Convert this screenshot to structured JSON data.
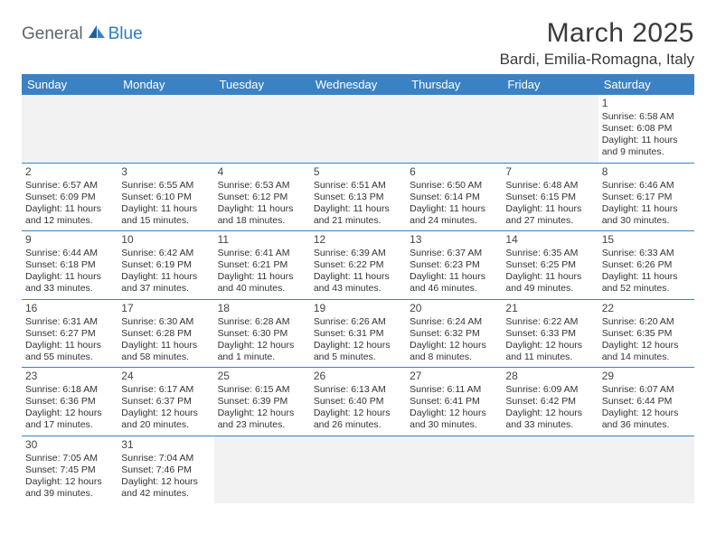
{
  "logo": {
    "part1": "General",
    "part2": "Blue"
  },
  "title": "March 2025",
  "location": "Bardi, Emilia-Romagna, Italy",
  "colors": {
    "header_bg": "#3b82c4",
    "header_text": "#ffffff",
    "cell_border": "#3b82c4",
    "logo_gray": "#5a6670",
    "logo_blue": "#2f7bbf",
    "empty_bg": "#f2f2f2"
  },
  "day_headers": [
    "Sunday",
    "Monday",
    "Tuesday",
    "Wednesday",
    "Thursday",
    "Friday",
    "Saturday"
  ],
  "weeks": [
    [
      null,
      null,
      null,
      null,
      null,
      null,
      {
        "n": "1",
        "sr": "Sunrise: 6:58 AM",
        "ss": "Sunset: 6:08 PM",
        "d1": "Daylight: 11 hours",
        "d2": "and 9 minutes."
      }
    ],
    [
      {
        "n": "2",
        "sr": "Sunrise: 6:57 AM",
        "ss": "Sunset: 6:09 PM",
        "d1": "Daylight: 11 hours",
        "d2": "and 12 minutes."
      },
      {
        "n": "3",
        "sr": "Sunrise: 6:55 AM",
        "ss": "Sunset: 6:10 PM",
        "d1": "Daylight: 11 hours",
        "d2": "and 15 minutes."
      },
      {
        "n": "4",
        "sr": "Sunrise: 6:53 AM",
        "ss": "Sunset: 6:12 PM",
        "d1": "Daylight: 11 hours",
        "d2": "and 18 minutes."
      },
      {
        "n": "5",
        "sr": "Sunrise: 6:51 AM",
        "ss": "Sunset: 6:13 PM",
        "d1": "Daylight: 11 hours",
        "d2": "and 21 minutes."
      },
      {
        "n": "6",
        "sr": "Sunrise: 6:50 AM",
        "ss": "Sunset: 6:14 PM",
        "d1": "Daylight: 11 hours",
        "d2": "and 24 minutes."
      },
      {
        "n": "7",
        "sr": "Sunrise: 6:48 AM",
        "ss": "Sunset: 6:15 PM",
        "d1": "Daylight: 11 hours",
        "d2": "and 27 minutes."
      },
      {
        "n": "8",
        "sr": "Sunrise: 6:46 AM",
        "ss": "Sunset: 6:17 PM",
        "d1": "Daylight: 11 hours",
        "d2": "and 30 minutes."
      }
    ],
    [
      {
        "n": "9",
        "sr": "Sunrise: 6:44 AM",
        "ss": "Sunset: 6:18 PM",
        "d1": "Daylight: 11 hours",
        "d2": "and 33 minutes."
      },
      {
        "n": "10",
        "sr": "Sunrise: 6:42 AM",
        "ss": "Sunset: 6:19 PM",
        "d1": "Daylight: 11 hours",
        "d2": "and 37 minutes."
      },
      {
        "n": "11",
        "sr": "Sunrise: 6:41 AM",
        "ss": "Sunset: 6:21 PM",
        "d1": "Daylight: 11 hours",
        "d2": "and 40 minutes."
      },
      {
        "n": "12",
        "sr": "Sunrise: 6:39 AM",
        "ss": "Sunset: 6:22 PM",
        "d1": "Daylight: 11 hours",
        "d2": "and 43 minutes."
      },
      {
        "n": "13",
        "sr": "Sunrise: 6:37 AM",
        "ss": "Sunset: 6:23 PM",
        "d1": "Daylight: 11 hours",
        "d2": "and 46 minutes."
      },
      {
        "n": "14",
        "sr": "Sunrise: 6:35 AM",
        "ss": "Sunset: 6:25 PM",
        "d1": "Daylight: 11 hours",
        "d2": "and 49 minutes."
      },
      {
        "n": "15",
        "sr": "Sunrise: 6:33 AM",
        "ss": "Sunset: 6:26 PM",
        "d1": "Daylight: 11 hours",
        "d2": "and 52 minutes."
      }
    ],
    [
      {
        "n": "16",
        "sr": "Sunrise: 6:31 AM",
        "ss": "Sunset: 6:27 PM",
        "d1": "Daylight: 11 hours",
        "d2": "and 55 minutes."
      },
      {
        "n": "17",
        "sr": "Sunrise: 6:30 AM",
        "ss": "Sunset: 6:28 PM",
        "d1": "Daylight: 11 hours",
        "d2": "and 58 minutes."
      },
      {
        "n": "18",
        "sr": "Sunrise: 6:28 AM",
        "ss": "Sunset: 6:30 PM",
        "d1": "Daylight: 12 hours",
        "d2": "and 1 minute."
      },
      {
        "n": "19",
        "sr": "Sunrise: 6:26 AM",
        "ss": "Sunset: 6:31 PM",
        "d1": "Daylight: 12 hours",
        "d2": "and 5 minutes."
      },
      {
        "n": "20",
        "sr": "Sunrise: 6:24 AM",
        "ss": "Sunset: 6:32 PM",
        "d1": "Daylight: 12 hours",
        "d2": "and 8 minutes."
      },
      {
        "n": "21",
        "sr": "Sunrise: 6:22 AM",
        "ss": "Sunset: 6:33 PM",
        "d1": "Daylight: 12 hours",
        "d2": "and 11 minutes."
      },
      {
        "n": "22",
        "sr": "Sunrise: 6:20 AM",
        "ss": "Sunset: 6:35 PM",
        "d1": "Daylight: 12 hours",
        "d2": "and 14 minutes."
      }
    ],
    [
      {
        "n": "23",
        "sr": "Sunrise: 6:18 AM",
        "ss": "Sunset: 6:36 PM",
        "d1": "Daylight: 12 hours",
        "d2": "and 17 minutes."
      },
      {
        "n": "24",
        "sr": "Sunrise: 6:17 AM",
        "ss": "Sunset: 6:37 PM",
        "d1": "Daylight: 12 hours",
        "d2": "and 20 minutes."
      },
      {
        "n": "25",
        "sr": "Sunrise: 6:15 AM",
        "ss": "Sunset: 6:39 PM",
        "d1": "Daylight: 12 hours",
        "d2": "and 23 minutes."
      },
      {
        "n": "26",
        "sr": "Sunrise: 6:13 AM",
        "ss": "Sunset: 6:40 PM",
        "d1": "Daylight: 12 hours",
        "d2": "and 26 minutes."
      },
      {
        "n": "27",
        "sr": "Sunrise: 6:11 AM",
        "ss": "Sunset: 6:41 PM",
        "d1": "Daylight: 12 hours",
        "d2": "and 30 minutes."
      },
      {
        "n": "28",
        "sr": "Sunrise: 6:09 AM",
        "ss": "Sunset: 6:42 PM",
        "d1": "Daylight: 12 hours",
        "d2": "and 33 minutes."
      },
      {
        "n": "29",
        "sr": "Sunrise: 6:07 AM",
        "ss": "Sunset: 6:44 PM",
        "d1": "Daylight: 12 hours",
        "d2": "and 36 minutes."
      }
    ],
    [
      {
        "n": "30",
        "sr": "Sunrise: 7:05 AM",
        "ss": "Sunset: 7:45 PM",
        "d1": "Daylight: 12 hours",
        "d2": "and 39 minutes."
      },
      {
        "n": "31",
        "sr": "Sunrise: 7:04 AM",
        "ss": "Sunset: 7:46 PM",
        "d1": "Daylight: 12 hours",
        "d2": "and 42 minutes."
      },
      null,
      null,
      null,
      null,
      null
    ]
  ]
}
